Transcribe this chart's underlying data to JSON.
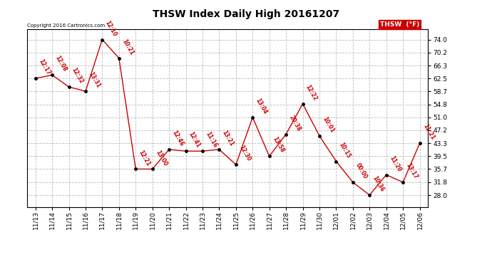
{
  "title": "THSW Index Daily High 20161207",
  "copyright": "Copyright 2016 Cartronics.com",
  "legend_label": "THSW  (°F)",
  "x_labels": [
    "11/13",
    "11/14",
    "11/15",
    "11/16",
    "11/17",
    "11/18",
    "11/19",
    "11/20",
    "11/21",
    "11/22",
    "11/23",
    "11/24",
    "11/25",
    "11/26",
    "11/27",
    "11/28",
    "11/29",
    "11/30",
    "12/01",
    "12/02",
    "12/03",
    "12/04",
    "12/05",
    "12/06"
  ],
  "y_values": [
    62.5,
    63.5,
    60.0,
    58.7,
    74.0,
    68.5,
    35.7,
    35.7,
    41.5,
    41.0,
    41.0,
    41.5,
    37.0,
    51.0,
    39.5,
    46.0,
    55.0,
    45.5,
    38.0,
    31.8,
    28.0,
    34.0,
    31.8,
    43.3
  ],
  "time_labels": [
    "12:17",
    "12:08",
    "12:32",
    "13:31",
    "12:10",
    "10:21",
    "12:21",
    "13:00",
    "12:46",
    "12:41",
    "11:16",
    "13:21",
    "12:30",
    "13:04",
    "13:58",
    "20:38",
    "12:22",
    "10:01",
    "10:15",
    "00:00",
    "10:36",
    "11:20",
    "13:17",
    "11:21"
  ],
  "y_ticks": [
    28.0,
    31.8,
    35.7,
    39.5,
    43.3,
    47.2,
    51.0,
    54.8,
    58.7,
    62.5,
    66.3,
    70.2,
    74.0
  ],
  "line_color": "#cc0000",
  "marker_color": "#000000",
  "grid_color": "#bbbbbb",
  "bg_color": "#ffffff",
  "title_fontsize": 10,
  "label_fontsize": 6.5,
  "time_fontsize": 5.5,
  "legend_bg": "#cc0000",
  "legend_text_color": "#ffffff",
  "ylim_min": 24.5,
  "ylim_max": 77.0
}
